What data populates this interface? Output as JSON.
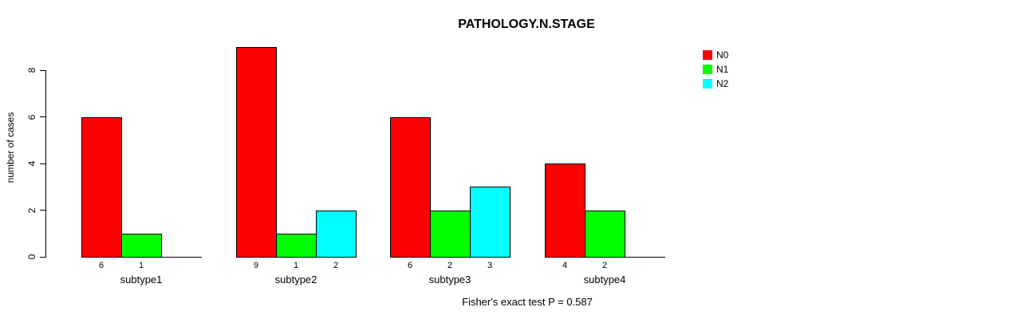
{
  "chart_data": {
    "type": "bar",
    "title": "PATHOLOGY.N.STAGE",
    "ylabel": "number of cases",
    "xlabel": "",
    "categories": [
      "subtype1",
      "subtype2",
      "subtype3",
      "subtype4"
    ],
    "series": [
      {
        "name": "N0",
        "color": "#ff0000",
        "values": [
          6,
          9,
          6,
          4
        ]
      },
      {
        "name": "N1",
        "color": "#00ff00",
        "values": [
          1,
          1,
          2,
          2
        ]
      },
      {
        "name": "N2",
        "color": "#00ffff",
        "values": [
          0,
          2,
          3,
          0
        ]
      }
    ],
    "yticks": [
      0,
      2,
      4,
      6,
      8
    ],
    "ylim": [
      0,
      9
    ],
    "grid": false,
    "legend_position": "top-right",
    "bar_value_labels": "shown under each nonzero bar",
    "annotation": "Fisher's exact test P = 0.587"
  }
}
